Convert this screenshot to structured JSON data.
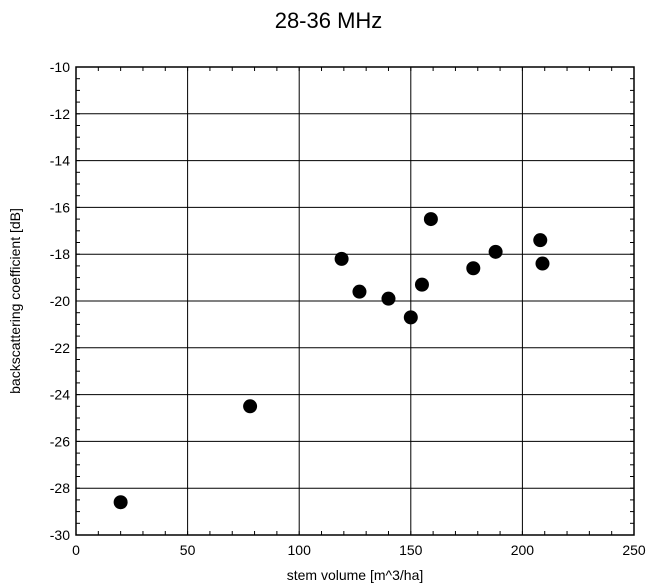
{
  "chart_data": {
    "type": "scatter",
    "title": "28-36 MHz",
    "xlabel": "stem volume [m^3/ha]",
    "ylabel": "backscattering coefficient [dB]",
    "xlim": [
      0,
      250
    ],
    "ylim": [
      -30,
      -10
    ],
    "x_ticks": [
      0,
      50,
      100,
      150,
      200,
      250
    ],
    "y_ticks": [
      -30,
      -28,
      -26,
      -24,
      -22,
      -20,
      -18,
      -16,
      -14,
      -12,
      -10
    ],
    "grid": true,
    "points": [
      {
        "x": 20,
        "y": -28.6
      },
      {
        "x": 78,
        "y": -24.5
      },
      {
        "x": 119,
        "y": -18.2
      },
      {
        "x": 127,
        "y": -19.6
      },
      {
        "x": 140,
        "y": -19.9
      },
      {
        "x": 150,
        "y": -20.7
      },
      {
        "x": 155,
        "y": -19.3
      },
      {
        "x": 159,
        "y": -16.5
      },
      {
        "x": 178,
        "y": -18.6
      },
      {
        "x": 188,
        "y": -17.9
      },
      {
        "x": 208,
        "y": -17.4
      },
      {
        "x": 209,
        "y": -18.4
      }
    ],
    "marker_color": "#000000"
  }
}
